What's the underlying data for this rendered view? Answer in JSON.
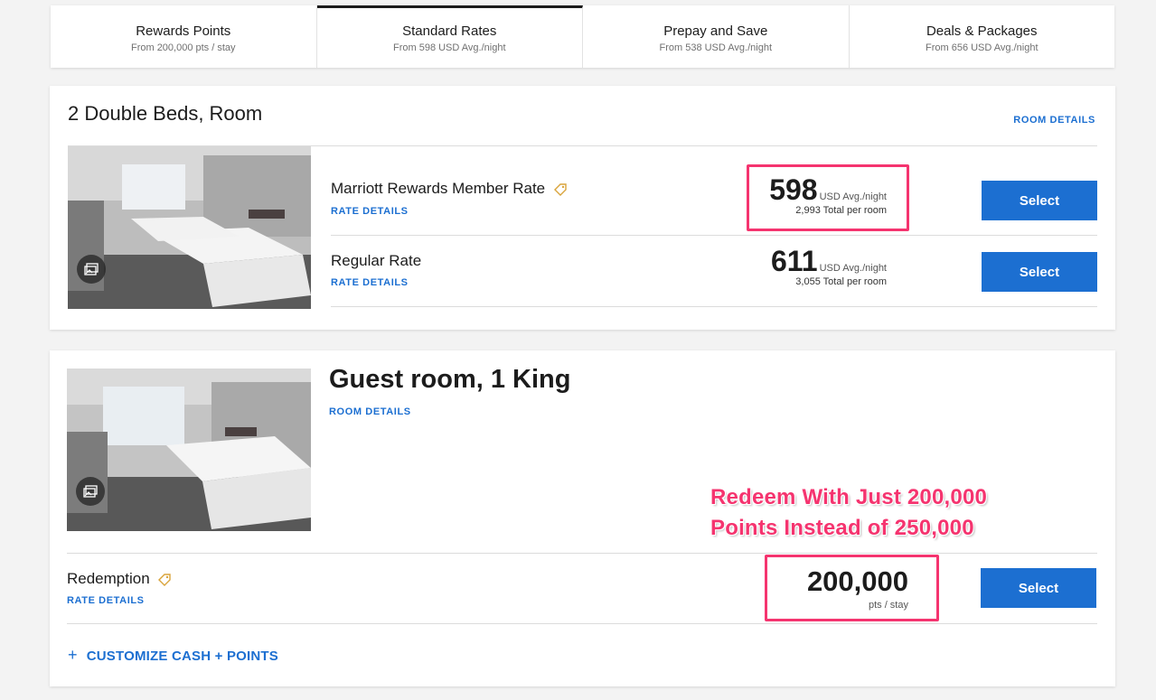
{
  "tabs": [
    {
      "title": "Rewards Points",
      "sub": "From 200,000 pts / stay"
    },
    {
      "title": "Standard Rates",
      "sub": "From 598 USD Avg./night"
    },
    {
      "title": "Prepay and Save",
      "sub": "From 538 USD Avg./night"
    },
    {
      "title": "Deals & Packages",
      "sub": "From 656 USD Avg./night"
    }
  ],
  "room1": {
    "title": "2 Double Beds, Room",
    "details_link": "ROOM DETAILS",
    "rates": [
      {
        "name": "Marriott Rewards Member Rate",
        "details": "RATE DETAILS",
        "price": "598",
        "unit": "USD Avg./night",
        "total": "2,993 Total per room",
        "button": "Select"
      },
      {
        "name": "Regular Rate",
        "details": "RATE DETAILS",
        "price": "611",
        "unit": "USD Avg./night",
        "total": "3,055 Total per room",
        "button": "Select"
      }
    ]
  },
  "room2": {
    "title": "Guest room, 1 King",
    "details_link": "ROOM DETAILS",
    "annotation_line1": "Redeem With Just 200,000",
    "annotation_line2": "Points Instead of 250,000",
    "rate": {
      "name": "Redemption",
      "details": "RATE DETAILS",
      "points": "200,000",
      "unit": "pts / stay",
      "button": "Select"
    },
    "customize_plus": "+",
    "customize_label": "CUSTOMIZE CASH + POINTS"
  },
  "colors": {
    "accent": "#1c6fd1",
    "highlight": "#f5346f",
    "tag": "#d9a43b"
  }
}
